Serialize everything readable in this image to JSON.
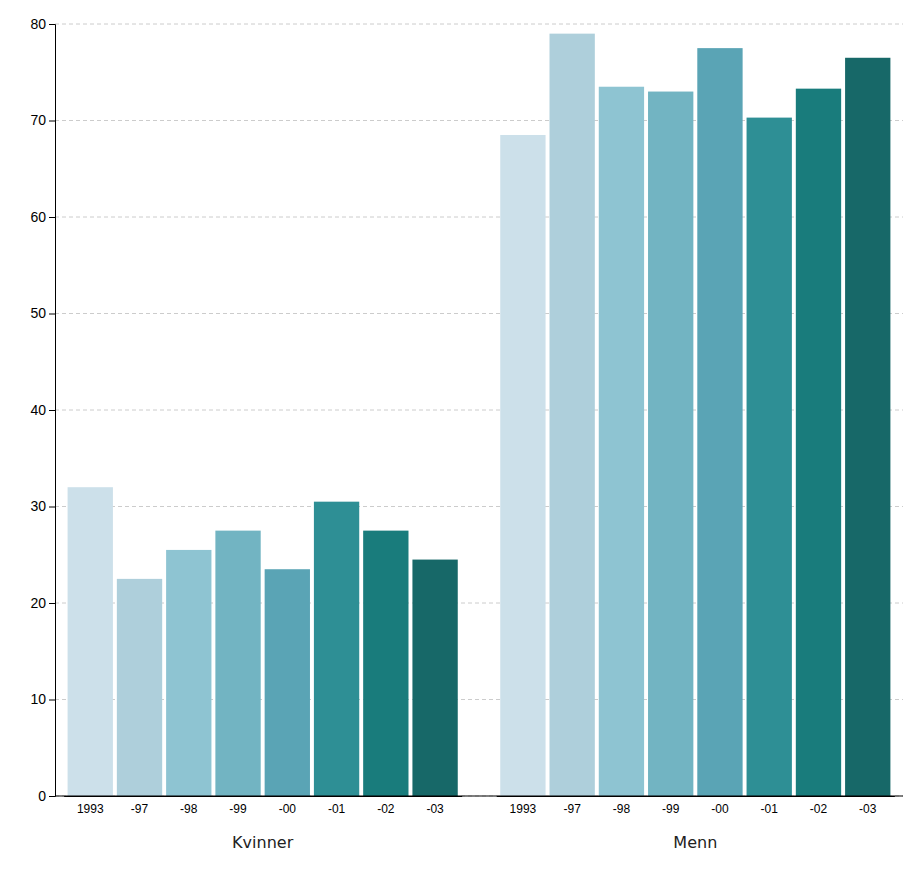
{
  "chart_data": {
    "type": "bar",
    "categories": [
      "1993",
      "-97",
      "-98",
      "-99",
      "-00",
      "-01",
      "-02",
      "-03"
    ],
    "series": [
      {
        "name": "Kvinner",
        "values": [
          32.0,
          22.5,
          25.5,
          27.5,
          23.5,
          30.5,
          27.5,
          24.5
        ],
        "colors": [
          "#cce0ea",
          "#aecfdb",
          "#8ec4d2",
          "#72b4c2",
          "#5aa4b5",
          "#2e8f95",
          "#197c7c",
          "#176868"
        ]
      },
      {
        "name": "Menn",
        "values": [
          68.5,
          79.0,
          73.5,
          73.0,
          77.5,
          70.3,
          73.3,
          76.5
        ],
        "colors": [
          "#cce0ea",
          "#aecfdb",
          "#8ec4d2",
          "#72b4c2",
          "#5aa4b5",
          "#2e8f95",
          "#197c7c",
          "#176868"
        ]
      }
    ],
    "ylim": [
      0,
      80
    ],
    "yticks": [
      0,
      10,
      20,
      30,
      40,
      50,
      60,
      70,
      80
    ],
    "grid": true
  }
}
